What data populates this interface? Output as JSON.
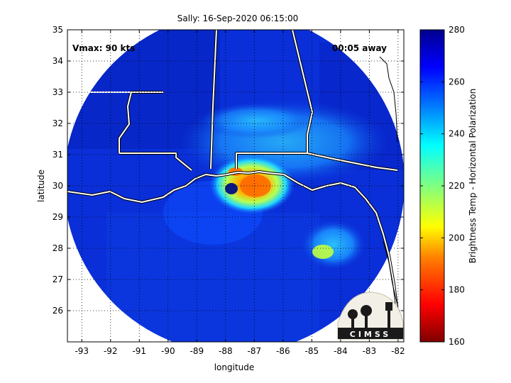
{
  "title": "Sally: 16-Sep-2020 06:15:00",
  "annotations": {
    "vmax": "Vmax: 90 kts",
    "time_away": "00:05 away"
  },
  "logo_text": "CIMSS",
  "map": {
    "xlabel": "longitude",
    "ylabel": "latitude",
    "lon_range": [
      -93.5,
      -81.8
    ],
    "lat_range": [
      25,
      35
    ],
    "lon_ticks": [
      -93,
      -92,
      -91,
      -90,
      -89,
      -88,
      -87,
      -86,
      -85,
      -84,
      -83,
      -82
    ],
    "lat_ticks": [
      26,
      27,
      28,
      29,
      30,
      31,
      32,
      33,
      34,
      35
    ],
    "grid": "dotted"
  },
  "colorbar": {
    "label": "Brightness Temp - Horizontal Polarization",
    "range": [
      160,
      280
    ],
    "ticks": [
      280,
      260,
      240,
      220,
      200,
      180,
      160
    ],
    "colormap": [
      "#7f0000",
      "#ff0000",
      "#ff8000",
      "#ffff00",
      "#80ff80",
      "#00ffff",
      "#0080ff",
      "#0000ff",
      "#00008f"
    ]
  }
}
